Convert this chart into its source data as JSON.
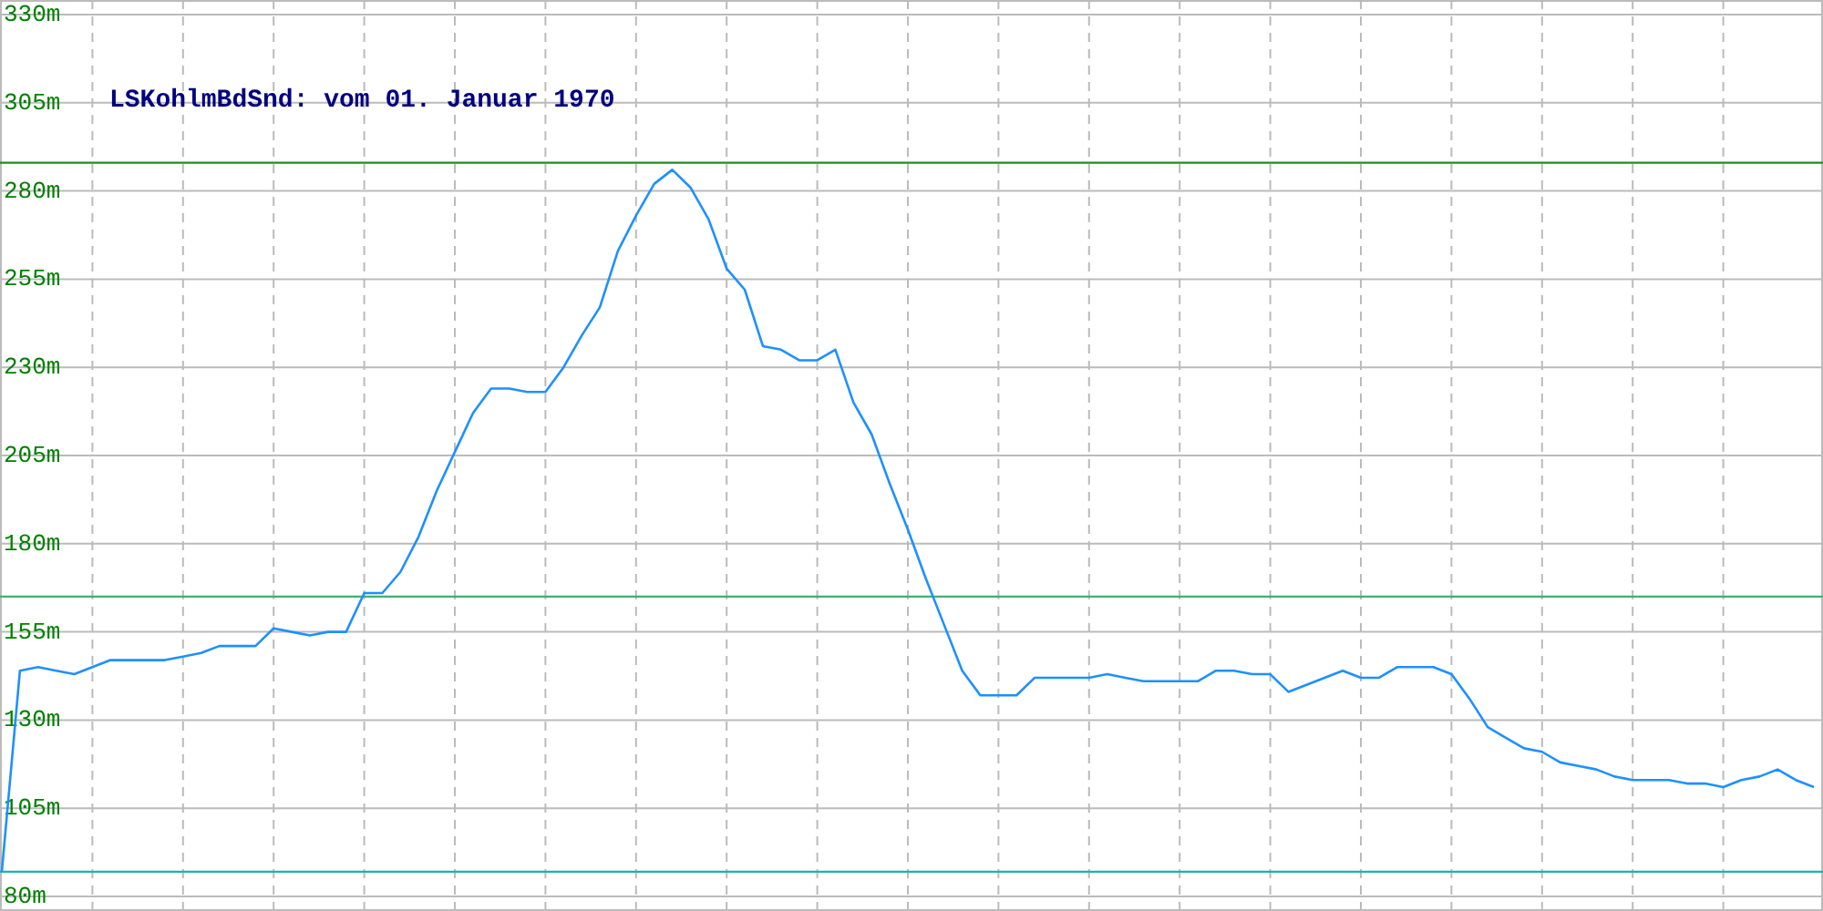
{
  "chart_data": {
    "type": "line",
    "title": "LSKohlmBdSnd: vom 01. Januar 1970",
    "categories": [
      null,
      null,
      null,
      null,
      null,
      null,
      null,
      null,
      null,
      null,
      null,
      null,
      null,
      null,
      null,
      null,
      null,
      null,
      null,
      null,
      null,
      null,
      null,
      null,
      null,
      null,
      null,
      null,
      null,
      null,
      null,
      null,
      null,
      null,
      null,
      null,
      null,
      null,
      null,
      null,
      null,
      null,
      null,
      null,
      null,
      null,
      null,
      null,
      null,
      null,
      null,
      null,
      null,
      null,
      null,
      null,
      null,
      null,
      null,
      null,
      null,
      null,
      null,
      null,
      null,
      null,
      null,
      null,
      null,
      null,
      null,
      null,
      null,
      null,
      null,
      null,
      null,
      null,
      null,
      null,
      null,
      null,
      null,
      null,
      null,
      null,
      null,
      null,
      null,
      null,
      null,
      null,
      null,
      null,
      null,
      null,
      null,
      null,
      null,
      null,
      null
    ],
    "series": [
      {
        "color": "#1e90ff",
        "values": [
          87,
          144,
          145,
          144,
          143,
          145,
          147,
          147,
          147,
          147,
          148,
          149,
          151,
          151,
          151,
          156,
          155,
          154,
          155,
          155,
          166,
          166,
          172,
          182,
          195,
          206,
          217,
          224,
          224,
          223,
          223,
          230,
          239,
          247,
          263,
          273,
          282,
          286,
          281,
          272,
          258,
          252,
          236,
          235,
          232,
          232,
          235,
          220,
          211,
          197,
          184,
          170,
          157,
          144,
          137,
          137,
          137,
          142,
          142,
          142,
          142,
          143,
          142,
          141,
          141,
          141,
          141,
          144,
          144,
          143,
          143,
          138,
          140,
          142,
          144,
          142,
          142,
          145,
          145,
          145,
          143,
          136,
          128,
          125,
          122,
          121,
          118,
          117,
          116,
          114,
          113,
          113,
          113,
          112,
          112,
          111,
          113,
          114,
          116,
          113,
          111
        ]
      }
    ],
    "ylim": [
      80,
      330
    ],
    "yticks": [
      {
        "value": 80,
        "label": "80m"
      },
      {
        "value": 105,
        "label": "105m"
      },
      {
        "value": 130,
        "label": "130m"
      },
      {
        "value": 155,
        "label": "155m"
      },
      {
        "value": 180,
        "label": "180m"
      },
      {
        "value": 205,
        "label": "205m"
      },
      {
        "value": 230,
        "label": "230m"
      },
      {
        "value": 255,
        "label": "255m"
      },
      {
        "value": 280,
        "label": "280m"
      },
      {
        "value": 305,
        "label": "305m"
      },
      {
        "value": 330,
        "label": "330m"
      }
    ],
    "ref_lines": [
      {
        "axis": "y",
        "value": 288,
        "color": "#228b22"
      },
      {
        "axis": "y",
        "value": 165,
        "color": "#3cb371"
      },
      {
        "axis": "y",
        "value": 87,
        "color": "#20b2aa"
      }
    ],
    "grid": true,
    "tick_labels": "y",
    "marker": "none",
    "line_style": "solid"
  }
}
